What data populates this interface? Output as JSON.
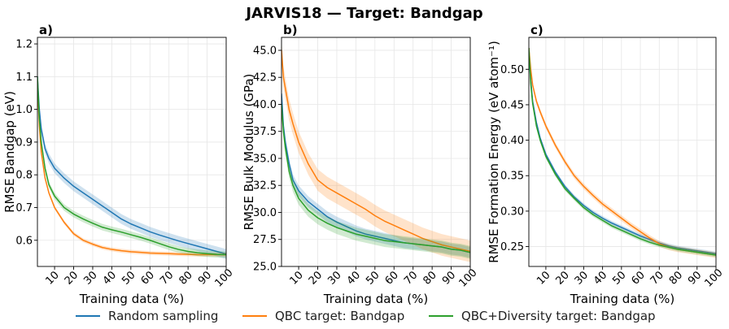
{
  "figure": {
    "title": "JARVIS18 — Target: Bandgap"
  },
  "legend": {
    "items": [
      {
        "label": "Random sampling",
        "color": "#1f77b4"
      },
      {
        "label": "QBC target: Bandgap",
        "color": "#ff7f0e"
      },
      {
        "label": "QBC+Diversity target: Bandgap",
        "color": "#2ca02c"
      }
    ]
  },
  "chart_data": [
    {
      "type": "line",
      "panel_label": "a)",
      "xlabel": "Training data (%)",
      "ylabel": "RMSE Bandgap (eV)",
      "xlim": [
        1,
        100
      ],
      "ylim": [
        0.52,
        1.22
      ],
      "xticks": [
        10,
        20,
        30,
        40,
        50,
        60,
        70,
        80,
        90,
        100
      ],
      "yticks": [
        0.6,
        0.7,
        0.8,
        0.9,
        1.0,
        1.1,
        1.2
      ],
      "ytick_labels": [
        "0.6",
        "0.7",
        "0.8",
        "0.9",
        "1.0",
        "1.1",
        "1.2"
      ],
      "grid": true,
      "x": [
        1,
        2,
        3,
        5,
        7,
        10,
        15,
        20,
        25,
        30,
        35,
        40,
        45,
        50,
        55,
        60,
        65,
        70,
        75,
        80,
        85,
        90,
        95,
        100
      ],
      "series": [
        {
          "name": "Random sampling",
          "color": "#1f77b4",
          "band": 0.015,
          "values": [
            1.1,
            1.0,
            0.94,
            0.88,
            0.85,
            0.82,
            0.79,
            0.765,
            0.745,
            0.725,
            0.705,
            0.685,
            0.665,
            0.65,
            0.638,
            0.626,
            0.616,
            0.607,
            0.598,
            0.59,
            0.582,
            0.574,
            0.566,
            0.558
          ]
        },
        {
          "name": "QBC target: Bandgap",
          "color": "#ff7f0e",
          "band": 0.006,
          "values": [
            1.08,
            0.95,
            0.87,
            0.79,
            0.745,
            0.7,
            0.655,
            0.62,
            0.6,
            0.588,
            0.578,
            0.572,
            0.568,
            0.565,
            0.563,
            0.561,
            0.56,
            0.559,
            0.558,
            0.557,
            0.556,
            0.556,
            0.556,
            0.556
          ]
        },
        {
          "name": "QBC+Diversity target: Bandgap",
          "color": "#2ca02c",
          "band": 0.01,
          "values": [
            1.1,
            0.97,
            0.9,
            0.82,
            0.77,
            0.735,
            0.7,
            0.68,
            0.665,
            0.652,
            0.64,
            0.632,
            0.625,
            0.617,
            0.609,
            0.6,
            0.59,
            0.58,
            0.572,
            0.566,
            0.562,
            0.559,
            0.557,
            0.556
          ]
        }
      ]
    },
    {
      "type": "line",
      "panel_label": "b)",
      "xlabel": "Training data (%)",
      "ylabel": "RMSE Bulk Modulus (GPa)",
      "xlim": [
        1,
        100
      ],
      "ylim": [
        25,
        46.2
      ],
      "xticks": [
        10,
        20,
        30,
        40,
        50,
        60,
        70,
        80,
        90,
        100
      ],
      "yticks": [
        25,
        27.5,
        30,
        32.5,
        35,
        37.5,
        40,
        42.5,
        45
      ],
      "ytick_labels": [
        "25.0",
        "27.5",
        "30.0",
        "32.5",
        "35.0",
        "37.5",
        "40.0",
        "42.5",
        "45.0"
      ],
      "grid": true,
      "x": [
        1,
        2,
        3,
        5,
        7,
        10,
        15,
        20,
        25,
        30,
        35,
        40,
        45,
        50,
        55,
        60,
        65,
        70,
        75,
        80,
        85,
        90,
        95,
        100
      ],
      "series": [
        {
          "name": "Random sampling",
          "color": "#1f77b4",
          "band": 0.5,
          "values": [
            41,
            38,
            36.5,
            34.5,
            33,
            32,
            31,
            30.3,
            29.6,
            29.1,
            28.7,
            28.3,
            28,
            27.8,
            27.6,
            27.4,
            27.2,
            27.1,
            27,
            26.9,
            26.8,
            26.6,
            26.5,
            26.3
          ]
        },
        {
          "name": "QBC target: Bandgap",
          "color": "#ff7f0e",
          "band": 1.0,
          "values": [
            45,
            42.5,
            41.5,
            39.5,
            38.2,
            36.5,
            34.5,
            33,
            32.3,
            31.8,
            31.3,
            30.8,
            30.3,
            29.7,
            29.2,
            28.8,
            28.4,
            28,
            27.6,
            27.3,
            27,
            26.8,
            26.6,
            26.4
          ]
        },
        {
          "name": "QBC+Diversity target: Bandgap",
          "color": "#2ca02c",
          "band": 0.6,
          "values": [
            40,
            37.5,
            36,
            33.8,
            32.5,
            31.3,
            30.2,
            29.5,
            29,
            28.6,
            28.3,
            28,
            27.8,
            27.6,
            27.4,
            27.3,
            27.2,
            27.1,
            27,
            26.9,
            26.8,
            26.6,
            26.5,
            26.3
          ]
        }
      ]
    },
    {
      "type": "line",
      "panel_label": "c)",
      "xlabel": "Training data (%)",
      "ylabel": "RMSE Formation Energy (eV atom⁻¹)",
      "xlim": [
        1,
        100
      ],
      "ylim": [
        0.222,
        0.545
      ],
      "xticks": [
        10,
        20,
        30,
        40,
        50,
        60,
        70,
        80,
        90,
        100
      ],
      "yticks": [
        0.25,
        0.3,
        0.35,
        0.4,
        0.45,
        0.5
      ],
      "ytick_labels": [
        "0.25",
        "0.30",
        "0.35",
        "0.40",
        "0.45",
        "0.50"
      ],
      "grid": true,
      "x": [
        1,
        2,
        3,
        5,
        7,
        10,
        15,
        20,
        25,
        30,
        35,
        40,
        45,
        50,
        55,
        60,
        65,
        70,
        75,
        80,
        85,
        90,
        95,
        100
      ],
      "series": [
        {
          "name": "Random sampling",
          "color": "#1f77b4",
          "band": 0.003,
          "values": [
            0.53,
            0.485,
            0.455,
            0.425,
            0.403,
            0.38,
            0.355,
            0.335,
            0.32,
            0.308,
            0.298,
            0.29,
            0.283,
            0.277,
            0.271,
            0.265,
            0.26,
            0.255,
            0.251,
            0.248,
            0.246,
            0.244,
            0.242,
            0.24
          ]
        },
        {
          "name": "QBC target: Bandgap",
          "color": "#ff7f0e",
          "band": 0.004,
          "values": [
            0.53,
            0.5,
            0.478,
            0.455,
            0.44,
            0.42,
            0.393,
            0.37,
            0.35,
            0.335,
            0.322,
            0.31,
            0.3,
            0.29,
            0.28,
            0.271,
            0.262,
            0.254,
            0.249,
            0.246,
            0.244,
            0.242,
            0.24,
            0.238
          ]
        },
        {
          "name": "QBC+Diversity target: Bandgap",
          "color": "#2ca02c",
          "band": 0.003,
          "values": [
            0.53,
            0.48,
            0.452,
            0.42,
            0.4,
            0.377,
            0.352,
            0.332,
            0.318,
            0.305,
            0.295,
            0.287,
            0.279,
            0.273,
            0.267,
            0.261,
            0.256,
            0.252,
            0.249,
            0.246,
            0.244,
            0.242,
            0.24,
            0.238
          ]
        }
      ]
    }
  ]
}
